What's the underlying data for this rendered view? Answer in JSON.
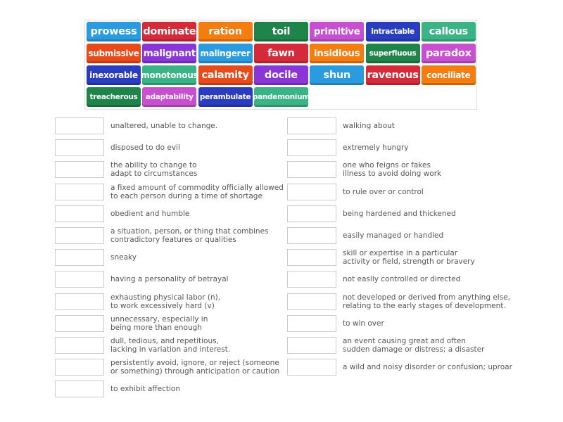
{
  "colors": {
    "blue": "#2b9be0",
    "red": "#d42a3a",
    "orange": "#f57c0e",
    "green": "#1e8449",
    "magenta": "#c84fd0",
    "navy": "#2a3dc0",
    "teal": "#3ab487",
    "redorange": "#e84a1a",
    "purple": "#8a35d8"
  },
  "tiles": [
    {
      "label": "prowess",
      "color": "blue"
    },
    {
      "label": "dominate",
      "color": "red"
    },
    {
      "label": "ration",
      "color": "orange"
    },
    {
      "label": "toil",
      "color": "green"
    },
    {
      "label": "primitive",
      "color": "magenta"
    },
    {
      "label": "intractable",
      "color": "navy"
    },
    {
      "label": "callous",
      "color": "teal"
    },
    {
      "label": "submissive",
      "color": "redorange"
    },
    {
      "label": "malignant",
      "color": "purple"
    },
    {
      "label": "malingerer",
      "color": "blue"
    },
    {
      "label": "fawn",
      "color": "red"
    },
    {
      "label": "insidious",
      "color": "orange"
    },
    {
      "label": "superfluous",
      "color": "green"
    },
    {
      "label": "paradox",
      "color": "magenta"
    },
    {
      "label": "inexorable",
      "color": "navy"
    },
    {
      "label": "monotonous",
      "color": "teal"
    },
    {
      "label": "calamity",
      "color": "redorange"
    },
    {
      "label": "docile",
      "color": "purple"
    },
    {
      "label": "shun",
      "color": "blue"
    },
    {
      "label": "ravenous",
      "color": "red"
    },
    {
      "label": "conciliate",
      "color": "orange"
    },
    {
      "label": "treacherous",
      "color": "green"
    },
    {
      "label": "adaptability",
      "color": "magenta"
    },
    {
      "label": "perambulate",
      "color": "navy"
    },
    {
      "label": "pandemonium",
      "color": "teal"
    }
  ],
  "left_definitions": [
    "unaltered, unable to change.",
    "disposed to do evil",
    "the ability to change to\nadapt to circumstances",
    "a fixed amount of commodity officially allowed\nto each person during a time of shortage",
    "obedient and humble",
    "a situation, person, or thing that combines\ncontradictory features or qualities",
    "sneaky",
    "having a personality of betrayal",
    "exhausting physical labor (n),\nto work excessively hard (v)",
    "unnecessary, especially in\nbeing more than enough",
    "dull, tedious, and repetitious,\nlacking in variation and interest.",
    "persistently avoid, ignore, or reject (someone\nor something) through anticipation or caution",
    "to exhibit affection"
  ],
  "right_definitions": [
    "walking about",
    "extremely hungry",
    "one who feigns or fakes\nillness to avoid doing work",
    "to rule over or control",
    "being hardened and thickened",
    "easily managed or handled",
    "skill or expertise in a particular\nactivity or field, strength or bravery",
    "not easily controlled or directed",
    "not developed or derived from anything else,\nrelating to the early stages of development.",
    "to win over",
    "an event causing great and often\nsudden damage or distress; a disaster",
    "a wild and noisy disorder or confusion; uproar"
  ]
}
